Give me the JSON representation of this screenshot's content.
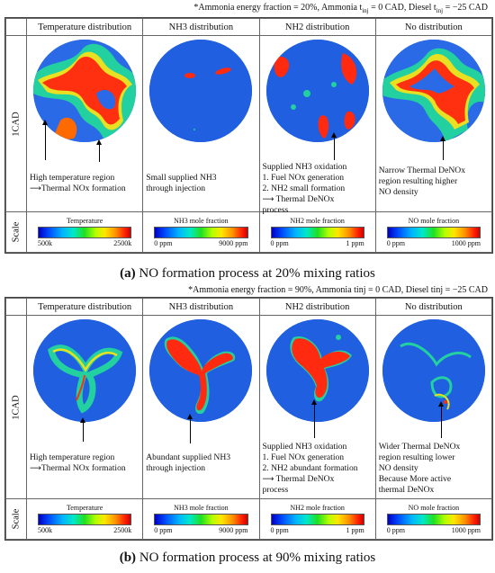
{
  "colors": {
    "field_low": "#1f5fe0",
    "mid": "#22d0a0",
    "high": "#ff2a10",
    "hot": "#e00000"
  },
  "panel_a": {
    "note": "*Ammonia energy fraction = 20%, Ammonia t",
    "note_sub1": "inj",
    "note_mid": " = 0 CAD, Diesel t",
    "note_sub2": "inj",
    "note_end": " = −25 CAD",
    "headers": [
      "Temperature distribution",
      "NH3 distribution",
      "NH2 distribution",
      "No distribution"
    ],
    "row_label": "1CAD",
    "scale_label": "Scale",
    "descriptions": [
      [
        "High temperature region",
        "Thermal NOx formation"
      ],
      [
        "Small supplied NH3",
        "through injection"
      ],
      [
        "Supplied NH3 oxidation",
        "1. Fuel NOx generation",
        "2. NH2 small formation",
        "Thermal DeNOx",
        "process"
      ],
      [
        "Narrow Thermal DeNOx",
        "region resulting higher",
        "NO density"
      ]
    ],
    "scales": [
      {
        "title": "Temperature",
        "min": "500k",
        "max": "2500k"
      },
      {
        "title": "NH3 mole fraction",
        "min": "0 ppm",
        "max": "9000 ppm"
      },
      {
        "title": "NH2 mole fraction",
        "min": "0 ppm",
        "max": "1 ppm"
      },
      {
        "title": "NO mole fraction",
        "min": "0 ppm",
        "max": "1000 ppm"
      }
    ],
    "caption_letter": "(a)",
    "caption": " NO formation process at 20% mixing ratios"
  },
  "panel_b": {
    "note": "*Ammonia energy fraction = 90%, Ammonia tinj = 0 CAD, Diesel tinj = −25 CAD",
    "headers": [
      "Temperature distribution",
      "NH3 distribution",
      "NH2 distribution",
      "No distribution"
    ],
    "row_label": "1CAD",
    "scale_label": "Scale",
    "descriptions": [
      [
        "High temperature region",
        "Thermal NOx formation"
      ],
      [
        "Abundant supplied NH3",
        "through injection"
      ],
      [
        "Supplied NH3 oxidation",
        "1. Fuel NOx generation",
        "2. NH2 abundant formation",
        "Thermal DeNOx",
        "process"
      ],
      [
        "Wider Thermal DeNOx",
        "region resulting lower",
        "NO density",
        "Because More active",
        "thermal DeNOx"
      ]
    ],
    "scales": [
      {
        "title": "Temperature",
        "min": "500k",
        "max": "2500k"
      },
      {
        "title": "NH3 mole fraction",
        "min": "0 ppm",
        "max": "9000 ppm"
      },
      {
        "title": "NH2 mole fraction",
        "min": "0 ppm",
        "max": "1 ppm"
      },
      {
        "title": "NO mole fraction",
        "min": "0 ppm",
        "max": "1000 ppm"
      }
    ],
    "caption_letter": "(b)",
    "caption": " NO formation process at 90% mixing ratios"
  }
}
